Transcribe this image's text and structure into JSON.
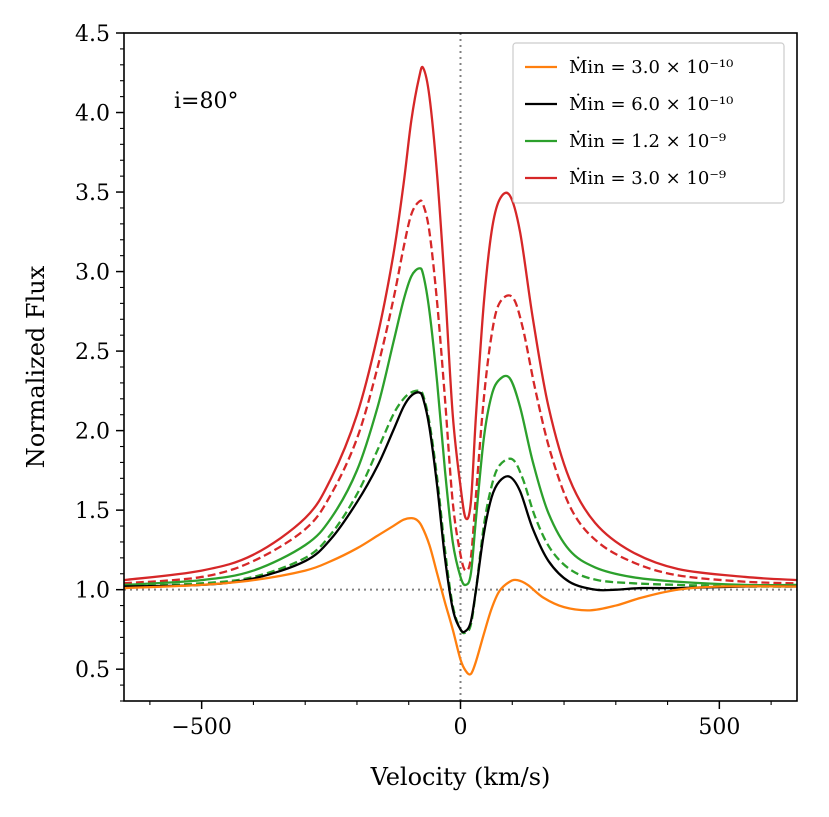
{
  "chart_data": {
    "type": "line",
    "xlabel": "Velocity (km/s)",
    "ylabel": "Normalized Flux",
    "xlim": [
      -650,
      650
    ],
    "ylim": [
      0.3,
      4.5
    ],
    "xticks": [
      -500,
      0,
      500
    ],
    "xtick_labels": [
      "−500",
      "0",
      "500"
    ],
    "yticks": [
      0.5,
      1.0,
      1.5,
      2.0,
      2.5,
      3.0,
      3.5,
      4.0,
      4.5
    ],
    "ytick_labels": [
      "0.5",
      "1.0",
      "1.5",
      "2.0",
      "2.5",
      "3.0",
      "3.5",
      "4.0",
      "4.5"
    ],
    "annotation": "i=80°",
    "reference_lines": {
      "x": 0,
      "y": 1.0
    },
    "legend_position": "top-right",
    "legend": [
      {
        "label": "Ṁin = 3.0 × 10⁻¹⁰",
        "color": "#ff7f0e"
      },
      {
        "label": "Ṁin = 6.0 × 10⁻¹⁰",
        "color": "#000000"
      },
      {
        "label": "Ṁin = 1.2 × 10⁻⁹",
        "color": "#2ca02c"
      },
      {
        "label": "Ṁin = 3.0 × 10⁻⁹",
        "color": "#d62728"
      }
    ],
    "series": [
      {
        "color": "#d62728",
        "style": "solid",
        "x": [
          -650,
          -500,
          -400,
          -300,
          -250,
          -200,
          -160,
          -130,
          -110,
          -95,
          -80,
          -72,
          -60,
          -45,
          -30,
          -15,
          0,
          10,
          20,
          30,
          45,
          60,
          75,
          95,
          115,
          140,
          170,
          210,
          260,
          330,
          420,
          550,
          650
        ],
        "y": [
          1.06,
          1.12,
          1.22,
          1.45,
          1.7,
          2.1,
          2.6,
          3.1,
          3.55,
          3.95,
          4.22,
          4.28,
          4.1,
          3.6,
          2.9,
          2.1,
          1.65,
          1.45,
          1.55,
          2.1,
          2.8,
          3.25,
          3.45,
          3.48,
          3.25,
          2.7,
          2.15,
          1.7,
          1.42,
          1.24,
          1.13,
          1.08,
          1.06
        ]
      },
      {
        "color": "#d62728",
        "style": "dashed",
        "x": [
          -650,
          -500,
          -400,
          -300,
          -250,
          -200,
          -160,
          -130,
          -110,
          -95,
          -80,
          -72,
          -60,
          -45,
          -30,
          -15,
          0,
          10,
          20,
          30,
          45,
          60,
          75,
          100,
          120,
          145,
          175,
          215,
          265,
          335,
          420,
          550,
          650
        ],
        "y": [
          1.04,
          1.08,
          1.18,
          1.38,
          1.6,
          1.95,
          2.4,
          2.82,
          3.15,
          3.36,
          3.44,
          3.42,
          3.25,
          2.8,
          2.2,
          1.55,
          1.22,
          1.12,
          1.2,
          1.6,
          2.2,
          2.6,
          2.8,
          2.84,
          2.65,
          2.25,
          1.85,
          1.5,
          1.3,
          1.17,
          1.09,
          1.05,
          1.04
        ]
      },
      {
        "color": "#2ca02c",
        "style": "solid",
        "x": [
          -650,
          -500,
          -400,
          -300,
          -250,
          -200,
          -160,
          -130,
          -110,
          -95,
          -80,
          -72,
          -60,
          -45,
          -30,
          -15,
          0,
          10,
          20,
          30,
          45,
          60,
          75,
          95,
          115,
          140,
          170,
          210,
          260,
          330,
          420,
          550,
          650
        ],
        "y": [
          1.03,
          1.06,
          1.12,
          1.28,
          1.45,
          1.75,
          2.15,
          2.55,
          2.82,
          2.97,
          3.02,
          2.98,
          2.75,
          2.3,
          1.75,
          1.3,
          1.08,
          1.03,
          1.1,
          1.45,
          1.95,
          2.22,
          2.32,
          2.33,
          2.15,
          1.8,
          1.48,
          1.25,
          1.14,
          1.08,
          1.05,
          1.03,
          1.03
        ]
      },
      {
        "color": "#2ca02c",
        "style": "dashed",
        "x": [
          -650,
          -500,
          -400,
          -300,
          -250,
          -200,
          -160,
          -130,
          -110,
          -95,
          -80,
          -72,
          -60,
          -45,
          -30,
          -15,
          0,
          10,
          20,
          30,
          45,
          60,
          75,
          100,
          120,
          145,
          175,
          215,
          265,
          335,
          420,
          550,
          650
        ],
        "y": [
          1.02,
          1.04,
          1.08,
          1.2,
          1.35,
          1.6,
          1.88,
          2.1,
          2.2,
          2.24,
          2.25,
          2.22,
          2.05,
          1.7,
          1.25,
          0.9,
          0.75,
          0.73,
          0.78,
          1.0,
          1.4,
          1.65,
          1.78,
          1.82,
          1.7,
          1.45,
          1.25,
          1.12,
          1.06,
          1.04,
          1.03,
          1.02,
          1.02
        ]
      },
      {
        "color": "#000000",
        "style": "solid",
        "x": [
          -650,
          -500,
          -400,
          -300,
          -250,
          -200,
          -160,
          -130,
          -110,
          -95,
          -80,
          -72,
          -60,
          -45,
          -30,
          -15,
          0,
          10,
          20,
          30,
          45,
          60,
          75,
          95,
          115,
          140,
          170,
          210,
          260,
          300,
          350,
          420,
          550,
          650
        ],
        "y": [
          1.02,
          1.03,
          1.07,
          1.18,
          1.32,
          1.55,
          1.78,
          2.0,
          2.15,
          2.22,
          2.24,
          2.2,
          2.02,
          1.65,
          1.2,
          0.88,
          0.75,
          0.74,
          0.8,
          1.0,
          1.35,
          1.58,
          1.68,
          1.71,
          1.62,
          1.38,
          1.18,
          1.05,
          1.0,
          1.0,
          1.01,
          1.01,
          1.02,
          1.02
        ]
      },
      {
        "color": "#ff7f0e",
        "style": "solid",
        "x": [
          -650,
          -500,
          -400,
          -300,
          -250,
          -200,
          -160,
          -130,
          -110,
          -95,
          -85,
          -75,
          -60,
          -45,
          -30,
          -15,
          0,
          10,
          20,
          30,
          45,
          60,
          75,
          95,
          110,
          130,
          160,
          200,
          250,
          300,
          350,
          420,
          500,
          650
        ],
        "y": [
          1.01,
          1.03,
          1.06,
          1.12,
          1.18,
          1.26,
          1.34,
          1.4,
          1.44,
          1.45,
          1.44,
          1.4,
          1.28,
          1.1,
          0.92,
          0.75,
          0.56,
          0.49,
          0.47,
          0.55,
          0.72,
          0.88,
          0.99,
          1.05,
          1.06,
          1.03,
          0.95,
          0.89,
          0.87,
          0.9,
          0.95,
          1.0,
          1.02,
          1.02
        ]
      }
    ]
  }
}
